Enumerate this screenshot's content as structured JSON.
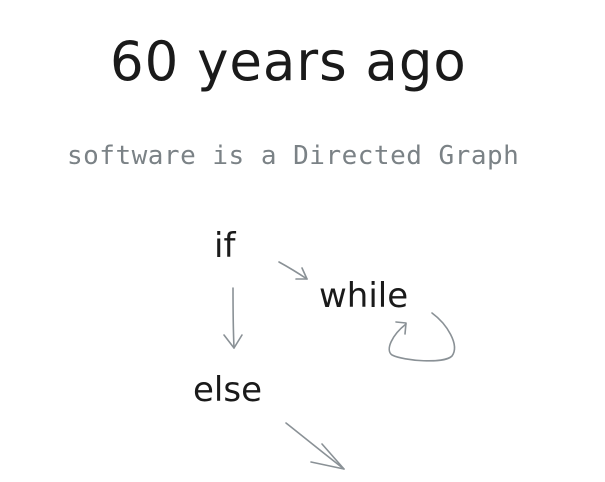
{
  "header": {
    "title": "60 years ago",
    "subtitle": "software is a Directed Graph"
  },
  "graph": {
    "nodes": [
      {
        "id": "if",
        "label": "if"
      },
      {
        "id": "while",
        "label": "while"
      },
      {
        "id": "else",
        "label": "else"
      }
    ],
    "edges": [
      {
        "from": "if",
        "to": "while"
      },
      {
        "from": "if",
        "to": "else"
      },
      {
        "from": "while",
        "to": "while"
      },
      {
        "from": "else",
        "to": ""
      }
    ]
  },
  "colors": {
    "text": "#1a1a1a",
    "subtitle": "#7b8286",
    "arrow": "#8a9196",
    "background": "#ffffff"
  }
}
